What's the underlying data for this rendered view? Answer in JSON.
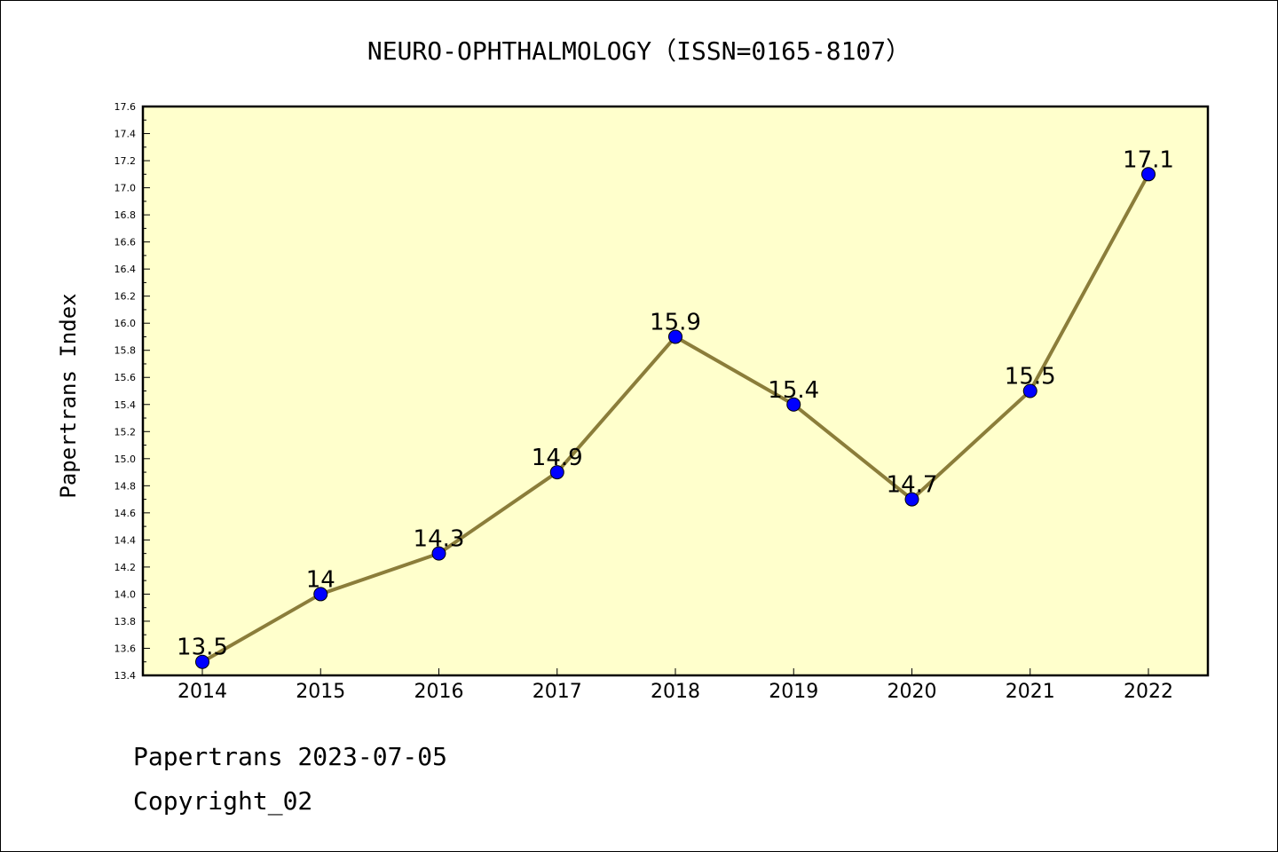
{
  "title": "NEURO-OPHTHALMOLOGY（ISSN=0165-8107）",
  "footer": {
    "line1": "Papertrans 2023-07-05",
    "line2": "Copyright_02"
  },
  "colors": {
    "plot_background": "#ffffcc",
    "line": "#8b7d3a",
    "marker": "#0000ff"
  },
  "chart_data": {
    "type": "line",
    "title": "NEURO-OPHTHALMOLOGY（ISSN=0165-8107）",
    "xlabel": "",
    "ylabel": "Papertrans Index",
    "categories": [
      "2014",
      "2015",
      "2016",
      "2017",
      "2018",
      "2019",
      "2020",
      "2021",
      "2022"
    ],
    "series": [
      {
        "values": [
          13.5,
          14.0,
          14.3,
          14.9,
          15.9,
          15.4,
          14.7,
          15.5,
          17.1
        ],
        "labels": [
          "13.5",
          "14",
          "14.3",
          "14.9",
          "15.9",
          "15.4",
          "14.7",
          "15.5",
          "17.1"
        ]
      }
    ],
    "ylim": [
      13.4,
      17.6
    ],
    "yticks": [
      "13.4",
      "13.6",
      "13.8",
      "14.0",
      "14.2",
      "14.4",
      "14.6",
      "14.8",
      "15.0",
      "15.2",
      "15.4",
      "15.6",
      "15.8",
      "16.0",
      "16.2",
      "16.4",
      "16.6",
      "16.8",
      "17.0",
      "17.2",
      "17.4",
      "17.6"
    ],
    "grid": false,
    "legend": "none"
  }
}
